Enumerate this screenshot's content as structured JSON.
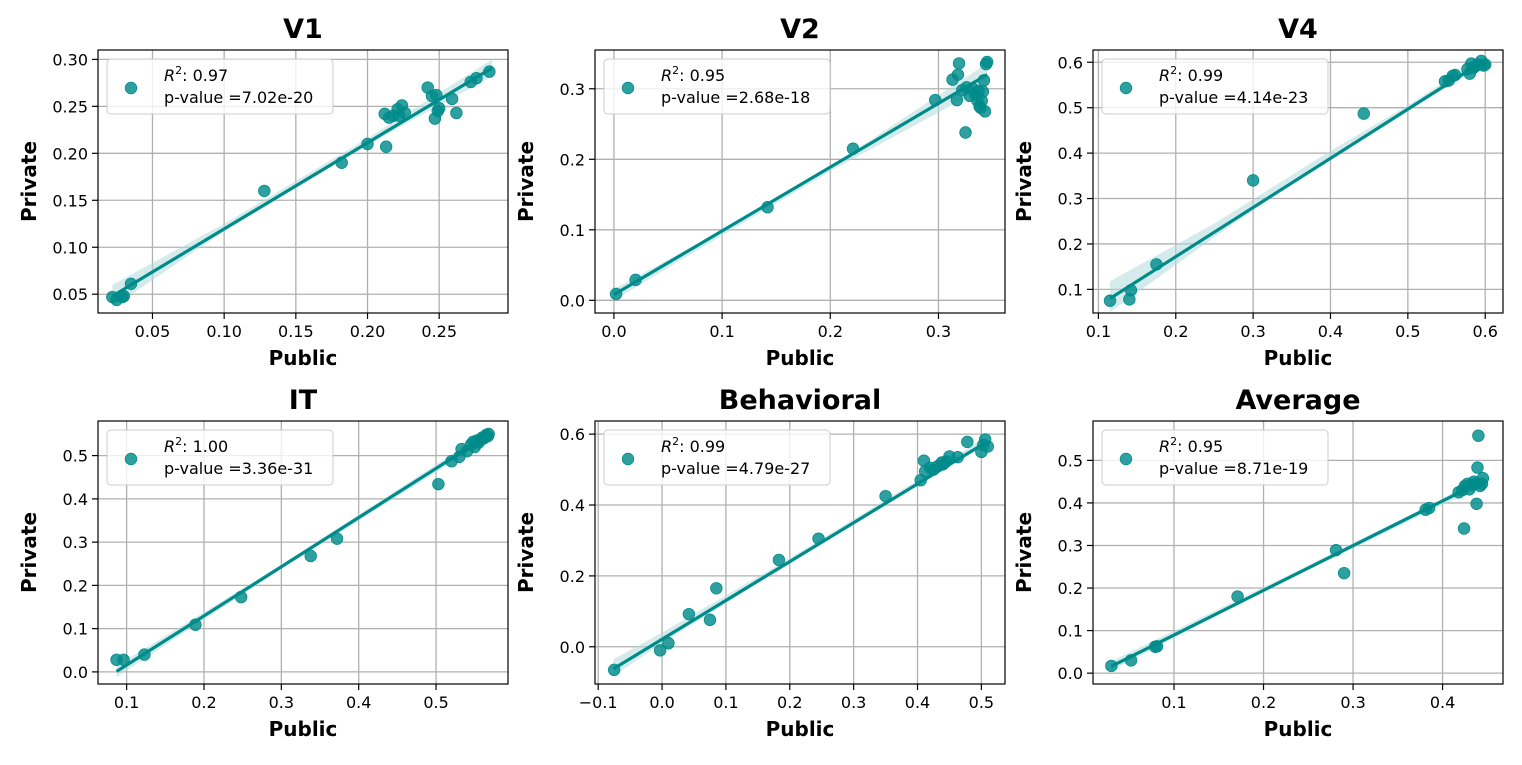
{
  "figure": {
    "color": "#008b8b",
    "ci_color": "#b2dada",
    "legend_labels": {
      "r2_prefix": "R",
      "r2_sup": "2",
      "r2_colon": ": ",
      "p_prefix": "p-value ="
    }
  },
  "chart_data": [
    {
      "type": "scatter",
      "title": "V1",
      "xlabel": "Public",
      "ylabel": "Private",
      "xlim": [
        0.012,
        0.298
      ],
      "ylim": [
        0.03,
        0.31
      ],
      "xticks": [
        0.05,
        0.1,
        0.15,
        0.2,
        0.25
      ],
      "xtick_labels": [
        "0.05",
        "0.10",
        "0.15",
        "0.20",
        "0.25"
      ],
      "yticks": [
        0.05,
        0.1,
        0.15,
        0.2,
        0.25,
        0.3
      ],
      "ytick_labels": [
        "0.05",
        "0.10",
        "0.15",
        "0.20",
        "0.25",
        "0.30"
      ],
      "fit": {
        "x0": 0.022,
        "y0": 0.048,
        "x1": 0.287,
        "y1": 0.291
      },
      "ci": {
        "lower": [
          [
            0.022,
            0.036
          ],
          [
            0.1,
            0.117
          ],
          [
            0.2,
            0.209
          ],
          [
            0.287,
            0.282
          ]
        ],
        "upper": [
          [
            0.022,
            0.06
          ],
          [
            0.1,
            0.125
          ],
          [
            0.2,
            0.216
          ],
          [
            0.287,
            0.3
          ]
        ]
      },
      "r2": "0.97",
      "pvalue": "7.02e-20",
      "points": [
        [
          0.022,
          0.047
        ],
        [
          0.025,
          0.044
        ],
        [
          0.029,
          0.047
        ],
        [
          0.03,
          0.048
        ],
        [
          0.035,
          0.061
        ],
        [
          0.128,
          0.16
        ],
        [
          0.182,
          0.19
        ],
        [
          0.2,
          0.21
        ],
        [
          0.212,
          0.242
        ],
        [
          0.213,
          0.207
        ],
        [
          0.215,
          0.238
        ],
        [
          0.218,
          0.24
        ],
        [
          0.221,
          0.247
        ],
        [
          0.222,
          0.24
        ],
        [
          0.224,
          0.251
        ],
        [
          0.226,
          0.243
        ],
        [
          0.242,
          0.27
        ],
        [
          0.245,
          0.261
        ],
        [
          0.247,
          0.237
        ],
        [
          0.248,
          0.262
        ],
        [
          0.249,
          0.245
        ],
        [
          0.25,
          0.248
        ],
        [
          0.259,
          0.258
        ],
        [
          0.262,
          0.243
        ],
        [
          0.272,
          0.276
        ],
        [
          0.276,
          0.28
        ],
        [
          0.285,
          0.287
        ]
      ]
    },
    {
      "type": "scatter",
      "title": "V2",
      "xlabel": "Public",
      "ylabel": "Private",
      "xlim": [
        -0.0175,
        0.3615
      ],
      "ylim": [
        -0.018,
        0.355
      ],
      "xticks": [
        0.0,
        0.1,
        0.2,
        0.3
      ],
      "xtick_labels": [
        "0.0",
        "0.1",
        "0.2",
        "0.3"
      ],
      "yticks": [
        0.0,
        0.1,
        0.2,
        0.3
      ],
      "ytick_labels": [
        "0.0",
        "0.1",
        "0.2",
        "0.3"
      ],
      "fit": {
        "x0": 0.0,
        "y0": 0.008,
        "x1": 0.345,
        "y1": 0.32
      },
      "ci": {
        "lower": [
          [
            0.0,
            0.0
          ],
          [
            0.1,
            0.092
          ],
          [
            0.2,
            0.183
          ],
          [
            0.345,
            0.304
          ]
        ],
        "upper": [
          [
            0.0,
            0.016
          ],
          [
            0.1,
            0.099
          ],
          [
            0.2,
            0.19
          ],
          [
            0.345,
            0.336
          ]
        ]
      },
      "r2": "0.95",
      "pvalue": "2.68e-18",
      "points": [
        [
          0.002,
          0.009
        ],
        [
          0.02,
          0.029
        ],
        [
          0.142,
          0.132
        ],
        [
          0.221,
          0.215
        ],
        [
          0.297,
          0.284
        ],
        [
          0.313,
          0.313
        ],
        [
          0.317,
          0.284
        ],
        [
          0.318,
          0.32
        ],
        [
          0.319,
          0.336
        ],
        [
          0.322,
          0.298
        ],
        [
          0.325,
          0.238
        ],
        [
          0.326,
          0.302
        ],
        [
          0.329,
          0.29
        ],
        [
          0.332,
          0.3
        ],
        [
          0.334,
          0.292
        ],
        [
          0.336,
          0.283
        ],
        [
          0.337,
          0.297
        ],
        [
          0.338,
          0.275
        ],
        [
          0.339,
          0.273
        ],
        [
          0.34,
          0.283
        ],
        [
          0.341,
          0.296
        ],
        [
          0.342,
          0.312
        ],
        [
          0.343,
          0.268
        ],
        [
          0.344,
          0.335
        ],
        [
          0.345,
          0.338
        ]
      ]
    },
    {
      "type": "scatter",
      "title": "V4",
      "xlabel": "Public",
      "ylabel": "Private",
      "xlim": [
        0.093,
        0.623
      ],
      "ylim": [
        0.048,
        0.627
      ],
      "xticks": [
        0.1,
        0.2,
        0.3,
        0.4,
        0.5,
        0.6
      ],
      "xtick_labels": [
        "0.1",
        "0.2",
        "0.3",
        "0.4",
        "0.5",
        "0.6"
      ],
      "yticks": [
        0.1,
        0.2,
        0.3,
        0.4,
        0.5,
        0.6
      ],
      "ytick_labels": [
        "0.1",
        "0.2",
        "0.3",
        "0.4",
        "0.5",
        "0.6"
      ],
      "fit": {
        "x0": 0.115,
        "y0": 0.08,
        "x1": 0.6,
        "y1": 0.605
      },
      "ci": {
        "lower": [
          [
            0.115,
            0.05
          ],
          [
            0.25,
            0.215
          ],
          [
            0.4,
            0.39
          ],
          [
            0.5,
            0.495
          ],
          [
            0.6,
            0.595
          ]
        ],
        "upper": [
          [
            0.115,
            0.118
          ],
          [
            0.25,
            0.245
          ],
          [
            0.4,
            0.405
          ],
          [
            0.5,
            0.505
          ],
          [
            0.6,
            0.615
          ]
        ]
      },
      "r2": "0.99",
      "pvalue": "4.14e-23",
      "points": [
        [
          0.115,
          0.075
        ],
        [
          0.14,
          0.078
        ],
        [
          0.142,
          0.098
        ],
        [
          0.175,
          0.155
        ],
        [
          0.3,
          0.34
        ],
        [
          0.443,
          0.487
        ],
        [
          0.548,
          0.558
        ],
        [
          0.553,
          0.56
        ],
        [
          0.558,
          0.57
        ],
        [
          0.561,
          0.572
        ],
        [
          0.577,
          0.585
        ],
        [
          0.58,
          0.575
        ],
        [
          0.582,
          0.597
        ],
        [
          0.585,
          0.588
        ],
        [
          0.588,
          0.592
        ],
        [
          0.59,
          0.595
        ],
        [
          0.595,
          0.603
        ],
        [
          0.598,
          0.593
        ],
        [
          0.6,
          0.595
        ]
      ]
    },
    {
      "type": "scatter",
      "title": "IT",
      "xlabel": "Public",
      "ylabel": "Private",
      "xlim": [
        0.063,
        0.593
      ],
      "ylim": [
        -0.028,
        0.58
      ],
      "xticks": [
        0.1,
        0.2,
        0.3,
        0.4,
        0.5
      ],
      "xtick_labels": [
        "0.1",
        "0.2",
        "0.3",
        "0.4",
        "0.5"
      ],
      "yticks": [
        0.0,
        0.1,
        0.2,
        0.3,
        0.4,
        0.5
      ],
      "ytick_labels": [
        "0.0",
        "0.1",
        "0.2",
        "0.3",
        "0.4",
        "0.5"
      ],
      "fit": {
        "x0": 0.087,
        "y0": 0.001,
        "x1": 0.57,
        "y1": 0.55
      },
      "ci": {
        "lower": [
          [
            0.087,
            -0.012
          ],
          [
            0.3,
            0.238
          ],
          [
            0.57,
            0.54
          ]
        ],
        "upper": [
          [
            0.087,
            0.014
          ],
          [
            0.3,
            0.248
          ],
          [
            0.57,
            0.56
          ]
        ]
      },
      "r2": "1.00",
      "pvalue": "3.36e-31",
      "points": [
        [
          0.087,
          0.028
        ],
        [
          0.096,
          0.028
        ],
        [
          0.123,
          0.04
        ],
        [
          0.189,
          0.109
        ],
        [
          0.248,
          0.173
        ],
        [
          0.338,
          0.268
        ],
        [
          0.372,
          0.308
        ],
        [
          0.503,
          0.434
        ],
        [
          0.52,
          0.487
        ],
        [
          0.53,
          0.497
        ],
        [
          0.533,
          0.515
        ],
        [
          0.54,
          0.51
        ],
        [
          0.545,
          0.525
        ],
        [
          0.548,
          0.532
        ],
        [
          0.55,
          0.52
        ],
        [
          0.553,
          0.535
        ],
        [
          0.555,
          0.53
        ],
        [
          0.558,
          0.537
        ],
        [
          0.56,
          0.542
        ],
        [
          0.562,
          0.54
        ],
        [
          0.565,
          0.548
        ],
        [
          0.567,
          0.545
        ],
        [
          0.568,
          0.55
        ]
      ]
    },
    {
      "type": "scatter",
      "title": "Behavioral",
      "xlabel": "Public",
      "ylabel": "Private",
      "xlim": [
        -0.105,
        0.537
      ],
      "ylim": [
        -0.105,
        0.637
      ],
      "xticks": [
        -0.1,
        0.0,
        0.1,
        0.2,
        0.3,
        0.4,
        0.5
      ],
      "xtick_labels": [
        "−0.1",
        "0.0",
        "0.1",
        "0.2",
        "0.3",
        "0.4",
        "0.5"
      ],
      "yticks": [
        0.0,
        0.2,
        0.4,
        0.6
      ],
      "ytick_labels": [
        "0.0",
        "0.2",
        "0.4",
        "0.6"
      ],
      "fit": {
        "x0": -0.076,
        "y0": -0.062,
        "x1": 0.51,
        "y1": 0.58
      },
      "ci": {
        "lower": [
          [
            -0.076,
            -0.082
          ],
          [
            0.0,
            0.01
          ],
          [
            0.2,
            0.235
          ],
          [
            0.4,
            0.46
          ],
          [
            0.51,
            0.57
          ]
        ],
        "upper": [
          [
            -0.076,
            -0.035
          ],
          [
            0.0,
            0.04
          ],
          [
            0.2,
            0.25
          ],
          [
            0.4,
            0.47
          ],
          [
            0.51,
            0.595
          ]
        ]
      },
      "r2": "0.99",
      "pvalue": "4.79e-27",
      "points": [
        [
          -0.075,
          -0.065
        ],
        [
          -0.003,
          -0.01
        ],
        [
          0.01,
          0.01
        ],
        [
          0.042,
          0.092
        ],
        [
          0.075,
          0.076
        ],
        [
          0.085,
          0.165
        ],
        [
          0.183,
          0.245
        ],
        [
          0.245,
          0.305
        ],
        [
          0.35,
          0.425
        ],
        [
          0.405,
          0.47
        ],
        [
          0.41,
          0.525
        ],
        [
          0.412,
          0.495
        ],
        [
          0.42,
          0.505
        ],
        [
          0.425,
          0.5
        ],
        [
          0.432,
          0.51
        ],
        [
          0.438,
          0.52
        ],
        [
          0.44,
          0.515
        ],
        [
          0.445,
          0.523
        ],
        [
          0.45,
          0.537
        ],
        [
          0.463,
          0.535
        ],
        [
          0.478,
          0.578
        ],
        [
          0.5,
          0.55
        ],
        [
          0.503,
          0.57
        ],
        [
          0.506,
          0.585
        ],
        [
          0.51,
          0.565
        ]
      ]
    },
    {
      "type": "scatter",
      "title": "Average",
      "xlabel": "Public",
      "ylabel": "Private",
      "xlim": [
        0.0095,
        0.4675
      ],
      "ylim": [
        -0.0255,
        0.5925
      ],
      "xticks": [
        0.1,
        0.2,
        0.3,
        0.4
      ],
      "xtick_labels": [
        "0.1",
        "0.2",
        "0.3",
        "0.4"
      ],
      "yticks": [
        0.0,
        0.1,
        0.2,
        0.3,
        0.4,
        0.5
      ],
      "ytick_labels": [
        "0.0",
        "0.1",
        "0.2",
        "0.3",
        "0.4",
        "0.5"
      ],
      "fit": {
        "x0": 0.03,
        "y0": 0.016,
        "x1": 0.445,
        "y1": 0.452
      },
      "ci": {
        "lower": [
          [
            0.03,
            0.006
          ],
          [
            0.2,
            0.192
          ],
          [
            0.4,
            0.395
          ],
          [
            0.445,
            0.438
          ]
        ],
        "upper": [
          [
            0.03,
            0.028
          ],
          [
            0.2,
            0.202
          ],
          [
            0.4,
            0.41
          ],
          [
            0.445,
            0.468
          ]
        ]
      },
      "r2": "0.95",
      "pvalue": "8.71e-19",
      "points": [
        [
          0.03,
          0.017
        ],
        [
          0.052,
          0.03
        ],
        [
          0.079,
          0.062
        ],
        [
          0.081,
          0.063
        ],
        [
          0.171,
          0.18
        ],
        [
          0.281,
          0.289
        ],
        [
          0.29,
          0.235
        ],
        [
          0.381,
          0.384
        ],
        [
          0.385,
          0.388
        ],
        [
          0.418,
          0.425
        ],
        [
          0.422,
          0.43
        ],
        [
          0.424,
          0.34
        ],
        [
          0.425,
          0.44
        ],
        [
          0.428,
          0.445
        ],
        [
          0.43,
          0.432
        ],
        [
          0.433,
          0.442
        ],
        [
          0.435,
          0.45
        ],
        [
          0.437,
          0.445
        ],
        [
          0.438,
          0.398
        ],
        [
          0.439,
          0.483
        ],
        [
          0.44,
          0.558
        ],
        [
          0.442,
          0.44
        ],
        [
          0.444,
          0.445
        ],
        [
          0.445,
          0.458
        ]
      ]
    }
  ]
}
